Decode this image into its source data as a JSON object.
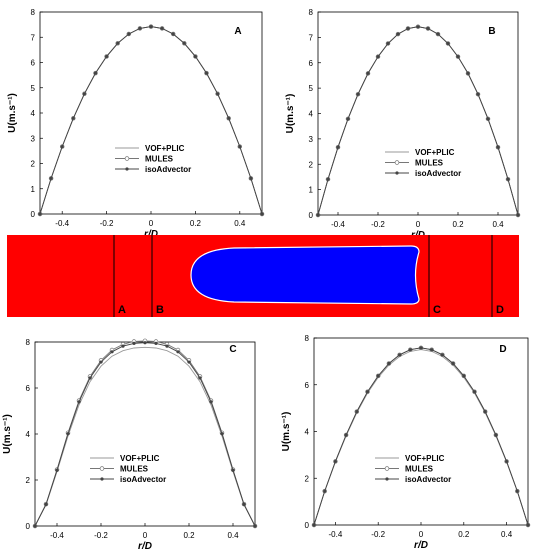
{
  "chart_data": [
    {
      "type": "line",
      "panel_label": "A",
      "xlabel": "r/D",
      "ylabel": "U(m.s⁻¹)",
      "xlim": [
        -0.5,
        0.5
      ],
      "ylim": [
        0,
        8
      ],
      "xticks": [
        "-0.4",
        "-0.2",
        "0",
        "0.2",
        "0.4"
      ],
      "yticks": [
        "0",
        "1",
        "2",
        "3",
        "4",
        "5",
        "6",
        "7",
        "8"
      ],
      "profile": {
        "r": [
          -0.5,
          -0.45,
          -0.4,
          -0.35,
          -0.3,
          -0.25,
          -0.2,
          -0.15,
          -0.1,
          -0.05,
          0,
          0.05,
          0.1,
          0.15,
          0.2,
          0.25,
          0.3,
          0.35,
          0.4,
          0.45,
          0.5
        ],
        "u": [
          0,
          1.41,
          2.67,
          3.79,
          4.76,
          5.58,
          6.24,
          6.76,
          7.13,
          7.35,
          7.42,
          7.35,
          7.13,
          6.76,
          6.24,
          5.58,
          4.76,
          3.79,
          2.67,
          1.41,
          0
        ]
      },
      "series": [
        {
          "name": "VOF+PLIC",
          "color": "#999999",
          "marker": "none",
          "scale": 1.0
        },
        {
          "name": "MULES",
          "color": "#777777",
          "marker": "open-diamond",
          "scale": 1.0
        },
        {
          "name": "isoAdvector",
          "color": "#444444",
          "marker": "filled-circle",
          "scale": 1.0
        }
      ]
    },
    {
      "type": "line",
      "panel_label": "B",
      "xlabel": "r/D",
      "ylabel": "U(m.s⁻¹)",
      "xlim": [
        -0.5,
        0.5
      ],
      "ylim": [
        0,
        8
      ],
      "xticks": [
        "-0.4",
        "-0.2",
        "0",
        "0.2",
        "0.4"
      ],
      "yticks": [
        "0",
        "1",
        "2",
        "3",
        "4",
        "5",
        "6",
        "7",
        "8"
      ],
      "profile": {
        "r": [
          -0.5,
          -0.45,
          -0.4,
          -0.35,
          -0.3,
          -0.25,
          -0.2,
          -0.15,
          -0.1,
          -0.05,
          0,
          0.05,
          0.1,
          0.15,
          0.2,
          0.25,
          0.3,
          0.35,
          0.4,
          0.45,
          0.5
        ],
        "u": [
          0,
          1.41,
          2.67,
          3.79,
          4.76,
          5.58,
          6.24,
          6.76,
          7.13,
          7.35,
          7.42,
          7.35,
          7.13,
          6.76,
          6.24,
          5.58,
          4.76,
          3.79,
          2.67,
          1.41,
          0
        ]
      },
      "series": [
        {
          "name": "VOF+PLIC",
          "color": "#999999",
          "marker": "none",
          "scale": 1.0
        },
        {
          "name": "MULES",
          "color": "#777777",
          "marker": "open-diamond",
          "scale": 1.0
        },
        {
          "name": "isoAdvector",
          "color": "#444444",
          "marker": "filled-circle",
          "scale": 1.0
        }
      ]
    },
    {
      "type": "line",
      "panel_label": "C",
      "xlabel": "r/D",
      "ylabel": "U(m.s⁻¹)",
      "xlim": [
        -0.5,
        0.5
      ],
      "ylim": [
        0,
        8
      ],
      "xticks": [
        "-0.4",
        "-0.2",
        "0",
        "0.2",
        "0.4"
      ],
      "yticks": [
        "0",
        "2",
        "4",
        "6",
        "8"
      ],
      "profile": {
        "r": [
          -0.5,
          -0.45,
          -0.4,
          -0.35,
          -0.3,
          -0.25,
          -0.2,
          -0.15,
          -0.1,
          -0.05,
          0,
          0.05,
          0.1,
          0.15,
          0.2,
          0.25,
          0.3,
          0.35,
          0.4,
          0.45,
          0.5
        ],
        "u": [
          0,
          0.95,
          2.45,
          4.05,
          5.45,
          6.5,
          7.2,
          7.65,
          7.9,
          8.02,
          8.05,
          8.02,
          7.9,
          7.65,
          7.2,
          6.5,
          5.45,
          4.05,
          2.45,
          0.95,
          0
        ]
      },
      "series": [
        {
          "name": "VOF+PLIC",
          "color": "#999999",
          "marker": "none",
          "scale": 0.965
        },
        {
          "name": "MULES",
          "color": "#777777",
          "marker": "open-diamond",
          "scale": 1.0
        },
        {
          "name": "isoAdvector",
          "color": "#444444",
          "marker": "filled-circle",
          "scale": 0.99
        }
      ]
    },
    {
      "type": "line",
      "panel_label": "D",
      "xlabel": "r/D",
      "ylabel": "U(m.s⁻¹)",
      "xlim": [
        -0.5,
        0.5
      ],
      "ylim": [
        0,
        8
      ],
      "xticks": [
        "-0.4",
        "-0.2",
        "0",
        "0.2",
        "0.4"
      ],
      "yticks": [
        "0",
        "2",
        "4",
        "6",
        "8"
      ],
      "profile": {
        "r": [
          -0.5,
          -0.45,
          -0.4,
          -0.35,
          -0.3,
          -0.25,
          -0.2,
          -0.15,
          -0.1,
          -0.05,
          0,
          0.05,
          0.1,
          0.15,
          0.2,
          0.25,
          0.3,
          0.35,
          0.4,
          0.45,
          0.5
        ],
        "u": [
          0,
          1.45,
          2.72,
          3.85,
          4.85,
          5.7,
          6.38,
          6.91,
          7.28,
          7.5,
          7.58,
          7.5,
          7.28,
          6.91,
          6.38,
          5.7,
          4.85,
          3.85,
          2.72,
          1.45,
          0
        ]
      },
      "series": [
        {
          "name": "VOF+PLIC",
          "color": "#999999",
          "marker": "none",
          "scale": 0.99
        },
        {
          "name": "MULES",
          "color": "#777777",
          "marker": "open-diamond",
          "scale": 1.0
        },
        {
          "name": "isoAdvector",
          "color": "#444444",
          "marker": "filled-circle",
          "scale": 1.0
        }
      ]
    }
  ],
  "domain_view": {
    "liquid_color": "#ff0000",
    "bubble_color": "#0000ff",
    "section_labels": [
      "A",
      "B",
      "C",
      "D"
    ]
  }
}
